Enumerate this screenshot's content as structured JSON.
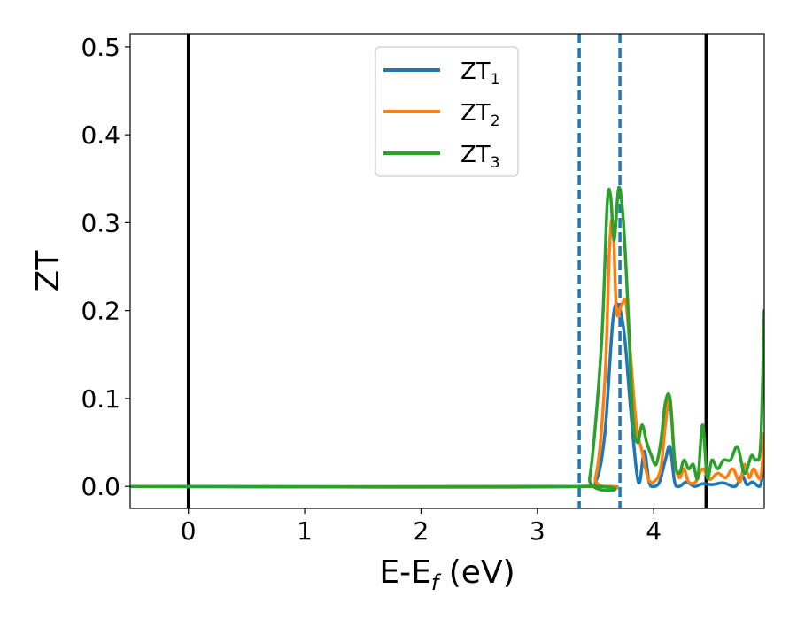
{
  "chart_data": {
    "type": "line",
    "xlabel": {
      "main": "E-E",
      "sub": "f",
      "suffix": " (eV)"
    },
    "ylabel": "ZT",
    "xlim": [
      -0.5,
      4.95
    ],
    "ylim": [
      -0.025,
      0.515
    ],
    "xticks": [
      0,
      1,
      2,
      3,
      4
    ],
    "xtick_labels": [
      "0",
      "1",
      "2",
      "3",
      "4"
    ],
    "yticks": [
      0.0,
      0.1,
      0.2,
      0.3,
      0.4,
      0.5
    ],
    "ytick_labels": [
      "0.0",
      "0.1",
      "0.2",
      "0.3",
      "0.4",
      "0.5"
    ],
    "grid": false,
    "legend_position": "top-center",
    "vertical_lines": [
      {
        "x": 0.0,
        "style": "solid",
        "color": "#000000"
      },
      {
        "x": 4.45,
        "style": "solid",
        "color": "#000000"
      },
      {
        "x": 3.36,
        "style": "dashed",
        "color": "#1f77b4"
      },
      {
        "x": 3.71,
        "style": "dashed",
        "color": "#1f77b4"
      }
    ],
    "series": [
      {
        "name": "ZT1",
        "label_main": "ZT",
        "label_sub": "1",
        "color": "#1f77b4",
        "x": [
          -0.5,
          3.36,
          3.5,
          3.58,
          3.65,
          3.7,
          3.75,
          3.8,
          3.85,
          3.88,
          3.92,
          3.96,
          4.0,
          4.05,
          4.1,
          4.14,
          4.18,
          4.22,
          4.28,
          4.35,
          4.42,
          4.5,
          4.6,
          4.7,
          4.76,
          4.8,
          4.85,
          4.92,
          4.95
        ],
        "y": [
          0.0,
          0.0,
          0.005,
          0.06,
          0.19,
          0.205,
          0.17,
          0.09,
          0.02,
          0.005,
          0.04,
          0.005,
          0.0,
          0.005,
          0.03,
          0.045,
          0.005,
          0.0,
          0.005,
          0.0,
          0.003,
          0.002,
          0.004,
          0.0,
          0.012,
          0.002,
          0.005,
          0.002,
          0.04
        ]
      },
      {
        "name": "ZT2",
        "label_main": "ZT",
        "label_sub": "2",
        "color": "#ff7f0e",
        "x": [
          -0.5,
          3.36,
          3.5,
          3.58,
          3.62,
          3.65,
          3.68,
          3.72,
          3.76,
          3.8,
          3.85,
          3.9,
          3.95,
          4.0,
          4.06,
          4.1,
          4.14,
          4.18,
          4.22,
          4.26,
          4.3,
          4.36,
          4.42,
          4.48,
          4.55,
          4.62,
          4.68,
          4.74,
          4.78,
          4.82,
          4.86,
          4.92,
          4.95
        ],
        "y": [
          0.0,
          0.0,
          0.01,
          0.12,
          0.27,
          0.3,
          0.2,
          0.205,
          0.21,
          0.15,
          0.07,
          0.04,
          0.01,
          0.005,
          0.02,
          0.07,
          0.1,
          0.03,
          0.01,
          0.02,
          0.005,
          0.005,
          0.02,
          0.008,
          0.015,
          0.01,
          0.02,
          0.005,
          0.025,
          0.01,
          0.02,
          0.01,
          0.06
        ]
      },
      {
        "name": "ZT3",
        "label_main": "ZT",
        "label_sub": "3",
        "color": "#2ca02c",
        "x": [
          -0.5,
          3.36,
          3.45,
          3.55,
          3.6,
          3.63,
          3.66,
          3.7,
          3.74,
          3.78,
          3.82,
          3.86,
          3.9,
          3.94,
          3.98,
          4.02,
          4.06,
          4.1,
          4.14,
          4.18,
          4.22,
          4.26,
          4.3,
          4.34,
          4.38,
          4.42,
          4.46,
          4.5,
          4.55,
          4.6,
          4.66,
          4.72,
          4.78,
          4.84,
          4.88,
          4.92,
          4.95
        ],
        "y": [
          0.0,
          0.0,
          0.01,
          0.16,
          0.32,
          0.33,
          0.28,
          0.34,
          0.3,
          0.2,
          0.08,
          0.05,
          0.07,
          0.05,
          0.035,
          0.025,
          0.05,
          0.095,
          0.1,
          0.03,
          0.015,
          0.03,
          0.02,
          0.025,
          0.01,
          0.07,
          0.01,
          0.03,
          0.02,
          0.03,
          0.03,
          0.045,
          0.015,
          0.035,
          0.03,
          0.05,
          0.2
        ]
      }
    ]
  }
}
